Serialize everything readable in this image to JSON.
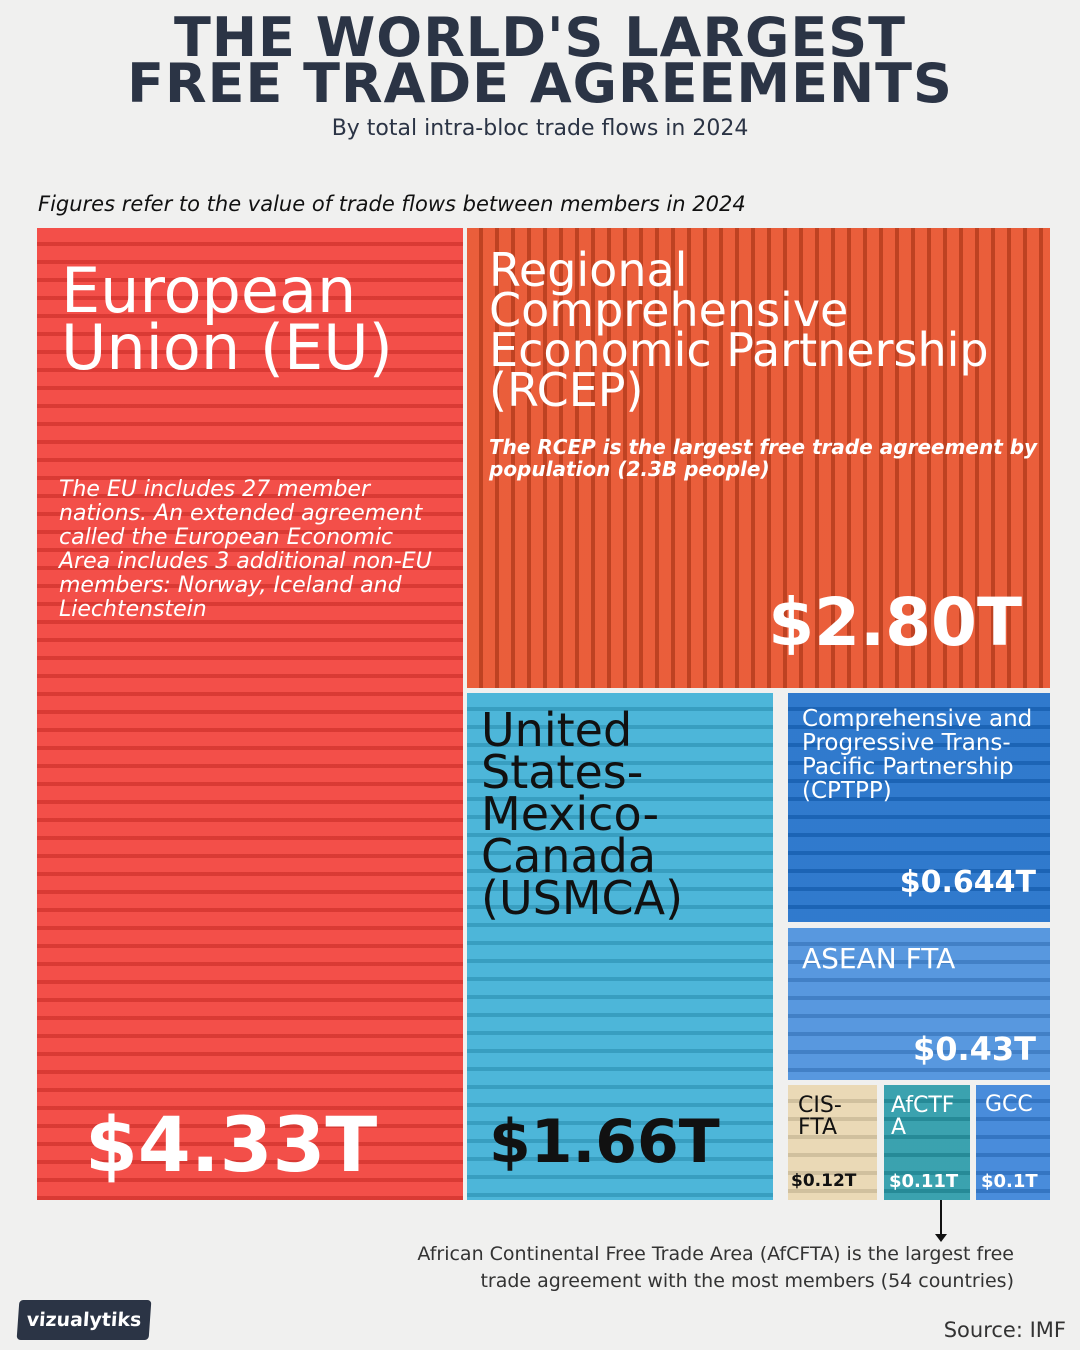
{
  "header": {
    "title_line1": "THE WORLD'S LARGEST",
    "title_line2": "FREE TRADE AGREEMENTS",
    "subtitle": "By total intra-bloc trade flows in 2024",
    "note": "Figures refer to the value of trade flows between members in 2024"
  },
  "chart_data": {
    "type": "treemap",
    "title": "THE WORLD'S LARGEST FREE TRADE AGREEMENTS",
    "subtitle": "By total intra-bloc trade flows in 2024",
    "unit": "USD trillions",
    "items": [
      {
        "name": "European Union (EU)",
        "value": 4.33,
        "label": "$4.33T",
        "color": "#f2403a",
        "description": "The EU includes 27 member nations. An extended agreement called the European Economic Area includes 3 additional non-EU members: Norway, Iceland and Liechtenstein"
      },
      {
        "name": "Regional Comprehensive Economic Partnership (RCEP)",
        "value": 2.8,
        "label": "$2.80T",
        "color": "#e8502a",
        "description": "The RCEP is the largest free trade agreement by population (2.3B people)"
      },
      {
        "name": "United States-Mexico-Canada (USMCA)",
        "value": 1.66,
        "label": "$1.66T",
        "color": "#3eb0d6"
      },
      {
        "name": "Comprehensive and Progressive Trans-Pacific Partnership (CPTPP)",
        "value": 0.644,
        "label": "$0.644T",
        "color": "#1f6fc9"
      },
      {
        "name": "ASEAN FTA",
        "value": 0.43,
        "label": "$0.43T",
        "color": "#4a8fdc"
      },
      {
        "name": "CIS-FTA",
        "value": 0.12,
        "label": "$0.12T",
        "color": "#e8d6b0"
      },
      {
        "name": "AfCTFA",
        "value": 0.11,
        "label": "$0.11T",
        "color": "#2a9aa8"
      },
      {
        "name": "GCC",
        "value": 0.1,
        "label": "$0.1T",
        "color": "#3a82d8"
      }
    ]
  },
  "footer": {
    "afcfta_note_line1": "African Continental Free Trade Area (AfCFTA) is the largest free",
    "afcfta_note_line2": "trade agreement with the most members (54 countries)",
    "source": "Source: IMF",
    "logo": "vizualytiks"
  }
}
